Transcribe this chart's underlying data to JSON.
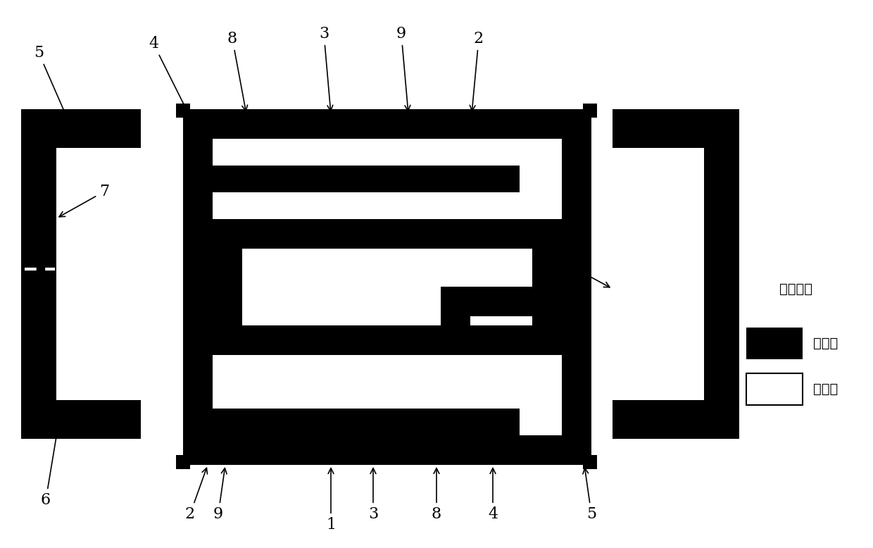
{
  "bg_color": "#ffffff",
  "black": "#000000",
  "white": "#ffffff",
  "legend_title": "介质基板",
  "legend_black_label": "上表面",
  "legend_white_label": "下表面",
  "figsize": [
    12.4,
    7.78
  ],
  "dpi": 100
}
